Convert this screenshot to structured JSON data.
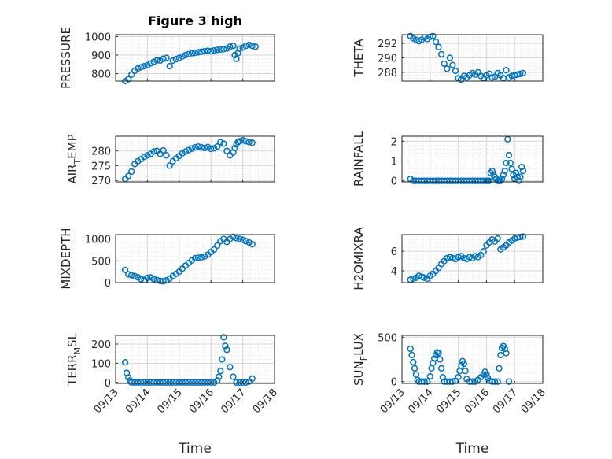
{
  "window": {
    "title": "Figure 3 high"
  },
  "chart_data": [
    {
      "type": "scatter",
      "panel": "pressure",
      "title": "Figure 3 high",
      "ylabel": "PRESSURE",
      "ylabel_sub": "",
      "ylim": [
        760,
        1010
      ],
      "yticks": [
        800,
        900,
        1000
      ],
      "xlim": [
        0,
        5
      ],
      "xticks": [
        "09/13",
        "09/14",
        "09/15",
        "09/16",
        "09/17",
        "09/18"
      ],
      "xlabel": "",
      "show_xticks": false,
      "grid": true,
      "series": [
        {
          "name": "PRESSURE",
          "x": [
            0.3,
            0.4,
            0.5,
            0.6,
            0.7,
            0.8,
            0.9,
            1.0,
            1.1,
            1.2,
            1.3,
            1.4,
            1.5,
            1.6,
            1.7,
            1.8,
            1.9,
            2.0,
            2.1,
            2.2,
            2.3,
            2.4,
            2.5,
            2.6,
            2.7,
            2.8,
            2.9,
            3.0,
            3.1,
            3.2,
            3.3,
            3.4,
            3.5,
            3.6,
            3.7,
            3.75,
            3.8,
            3.85,
            3.9,
            4.0,
            4.1,
            4.2,
            4.3,
            4.4
          ],
          "y": [
            760,
            770,
            795,
            815,
            828,
            834,
            840,
            845,
            855,
            864,
            872,
            870,
            880,
            885,
            840,
            870,
            878,
            885,
            893,
            900,
            905,
            910,
            912,
            915,
            918,
            920,
            923,
            920,
            925,
            928,
            930,
            932,
            935,
            945,
            950,
            900,
            880,
            910,
            935,
            940,
            950,
            955,
            950,
            945
          ]
        }
      ]
    },
    {
      "type": "scatter",
      "panel": "theta",
      "title": "",
      "ylabel": "THETA",
      "ylabel_sub": "",
      "ylim": [
        286.8,
        293.2
      ],
      "yticks": [
        288,
        290,
        292
      ],
      "xlim": [
        0,
        5
      ],
      "xticks": [
        "09/13",
        "09/14",
        "09/15",
        "09/16",
        "09/17",
        "09/18"
      ],
      "xlabel": "",
      "show_xticks": false,
      "grid": true,
      "series": [
        {
          "name": "THETA",
          "x": [
            0.3,
            0.4,
            0.5,
            0.6,
            0.7,
            0.8,
            0.9,
            1.0,
            1.1,
            1.2,
            1.3,
            1.4,
            1.5,
            1.6,
            1.7,
            1.8,
            1.9,
            2.0,
            2.1,
            2.2,
            2.3,
            2.4,
            2.5,
            2.6,
            2.7,
            2.8,
            2.9,
            3.0,
            3.1,
            3.2,
            3.3,
            3.4,
            3.5,
            3.6,
            3.7,
            3.8,
            3.9,
            4.0,
            4.1,
            4.2,
            4.3
          ],
          "y": [
            293,
            292.7,
            292.5,
            292.3,
            292.5,
            292.8,
            292.6,
            292.9,
            293,
            292.2,
            291.5,
            290.5,
            289.2,
            288.5,
            290,
            289,
            288.2,
            287.2,
            287,
            287.5,
            287.3,
            287.6,
            287.9,
            287.7,
            288,
            287.5,
            287.2,
            287.6,
            287.8,
            287.3,
            287.4,
            287.9,
            287.6,
            287.2,
            288.3,
            287.3,
            287.5,
            287.6,
            287.7,
            287.8,
            287.9
          ]
        }
      ]
    },
    {
      "type": "scatter",
      "panel": "air_temp",
      "title": "",
      "ylabel": "AIR",
      "ylabel_sub": "T",
      "ylabel_tail": "EMP",
      "ylim": [
        269.5,
        285
      ],
      "yticks": [
        270,
        275,
        280
      ],
      "xlim": [
        0,
        5
      ],
      "xticks": [
        "09/13",
        "09/14",
        "09/15",
        "09/16",
        "09/17",
        "09/18"
      ],
      "xlabel": "",
      "show_xticks": false,
      "grid": true,
      "series": [
        {
          "name": "AIR_TEMP",
          "x": [
            0.3,
            0.4,
            0.5,
            0.6,
            0.7,
            0.8,
            0.9,
            1.0,
            1.1,
            1.2,
            1.3,
            1.4,
            1.5,
            1.6,
            1.7,
            1.8,
            1.9,
            2.0,
            2.1,
            2.2,
            2.3,
            2.4,
            2.5,
            2.6,
            2.7,
            2.8,
            2.9,
            3.0,
            3.1,
            3.2,
            3.3,
            3.4,
            3.5,
            3.6,
            3.7,
            3.75,
            3.8,
            3.85,
            3.9,
            4.0,
            4.1,
            4.2,
            4.3
          ],
          "y": [
            270.5,
            271.5,
            273,
            275.5,
            276.5,
            277.2,
            278,
            278.5,
            279,
            279.8,
            280,
            279,
            280.2,
            278.5,
            275,
            276.5,
            277.5,
            278.3,
            279.2,
            279.8,
            280.3,
            280.8,
            281.2,
            281.5,
            281.2,
            281,
            281.3,
            280.7,
            280.9,
            281.5,
            283,
            282.5,
            280,
            278.5,
            279.5,
            281,
            282.2,
            283,
            283.3,
            283.6,
            283.3,
            283,
            282.8
          ]
        }
      ]
    },
    {
      "type": "scatter",
      "panel": "rainfall",
      "title": "",
      "ylabel": "RAINFALL",
      "ylabel_sub": "",
      "ylim": [
        -0.05,
        2.25
      ],
      "yticks": [
        0,
        1,
        2
      ],
      "xlim": [
        0,
        5
      ],
      "xticks": [
        "09/13",
        "09/14",
        "09/15",
        "09/16",
        "09/17",
        "09/18"
      ],
      "xlabel": "",
      "show_xticks": false,
      "grid": true,
      "series": [
        {
          "name": "RAINFALL",
          "x": [
            0.3,
            0.4,
            0.5,
            0.6,
            0.7,
            0.8,
            0.9,
            1.0,
            1.1,
            1.2,
            1.3,
            1.4,
            1.5,
            1.6,
            1.7,
            1.8,
            1.9,
            2.0,
            2.1,
            2.2,
            2.3,
            2.4,
            2.5,
            2.6,
            2.7,
            2.8,
            2.9,
            3.0,
            3.05,
            3.1,
            3.15,
            3.2,
            3.25,
            3.3,
            3.35,
            3.4,
            3.45,
            3.5,
            3.55,
            3.6,
            3.65,
            3.7,
            3.75,
            3.8,
            3.85,
            3.9,
            3.95,
            4.0,
            4.05,
            4.1,
            4.15,
            4.2,
            4.25,
            4.3
          ],
          "y": [
            0.1,
            0,
            0,
            0,
            0,
            0,
            0,
            0,
            0,
            0,
            0,
            0,
            0,
            0,
            0,
            0,
            0,
            0,
            0,
            0,
            0,
            0,
            0,
            0,
            0,
            0,
            0,
            0,
            0,
            0,
            0.4,
            0.5,
            0.3,
            0.2,
            0.1,
            0,
            0,
            0,
            0.1,
            0.3,
            0.5,
            0.9,
            2.1,
            1.3,
            0.9,
            0.6,
            0.3,
            0.1,
            0.4,
            0.2,
            0,
            0.2,
            0.7,
            0.5
          ]
        }
      ]
    },
    {
      "type": "scatter",
      "panel": "mixdepth",
      "title": "",
      "ylabel": "MIXDEPTH",
      "ylabel_sub": "",
      "ylim": [
        0,
        1100
      ],
      "yticks": [
        0,
        500,
        1000
      ],
      "xlim": [
        0,
        5
      ],
      "xticks": [
        "09/13",
        "09/14",
        "09/15",
        "09/16",
        "09/17",
        "09/18"
      ],
      "xlabel": "",
      "show_xticks": false,
      "grid": true,
      "series": [
        {
          "name": "MIXDEPTH",
          "x": [
            0.3,
            0.4,
            0.5,
            0.6,
            0.7,
            0.8,
            0.9,
            1.0,
            1.1,
            1.2,
            1.3,
            1.4,
            1.5,
            1.6,
            1.7,
            1.8,
            1.9,
            2.0,
            2.1,
            2.2,
            2.3,
            2.4,
            2.5,
            2.6,
            2.7,
            2.8,
            2.9,
            3.0,
            3.1,
            3.2,
            3.3,
            3.4,
            3.5,
            3.6,
            3.7,
            3.8,
            3.9,
            4.0,
            4.1,
            4.2,
            4.3
          ],
          "y": [
            290,
            190,
            170,
            150,
            120,
            80,
            60,
            110,
            120,
            80,
            60,
            40,
            30,
            50,
            90,
            150,
            200,
            250,
            320,
            390,
            450,
            510,
            560,
            570,
            580,
            600,
            640,
            700,
            760,
            850,
            950,
            1000,
            930,
            1000,
            1050,
            1020,
            1000,
            980,
            950,
            920,
            880
          ]
        }
      ]
    },
    {
      "type": "scatter",
      "panel": "h2omixra",
      "title": "",
      "ylabel": "H2OMIXRA",
      "ylabel_sub": "",
      "ylim": [
        2.8,
        7.7
      ],
      "yticks": [
        4,
        6
      ],
      "xlim": [
        0,
        5
      ],
      "xticks": [
        "09/13",
        "09/14",
        "09/15",
        "09/16",
        "09/17",
        "09/18"
      ],
      "xlabel": "",
      "show_xticks": false,
      "grid": true,
      "series": [
        {
          "name": "H2OMIXRA",
          "x": [
            0.3,
            0.4,
            0.5,
            0.6,
            0.7,
            0.8,
            0.9,
            1.0,
            1.1,
            1.2,
            1.3,
            1.4,
            1.5,
            1.6,
            1.7,
            1.8,
            1.9,
            2.0,
            2.1,
            2.2,
            2.3,
            2.4,
            2.5,
            2.6,
            2.7,
            2.8,
            2.9,
            3.0,
            3.1,
            3.2,
            3.3,
            3.4,
            3.5,
            3.6,
            3.7,
            3.8,
            3.9,
            4.0,
            4.1,
            4.2,
            4.3
          ],
          "y": [
            3.1,
            3.2,
            3.3,
            3.5,
            3.4,
            3.3,
            3.2,
            3.5,
            3.7,
            4.0,
            4.3,
            4.7,
            5.0,
            5.3,
            5.4,
            5.3,
            5.2,
            5.4,
            5.5,
            5.3,
            5.2,
            5.4,
            5.3,
            5.5,
            5.4,
            5.6,
            6.0,
            6.6,
            6.9,
            7.2,
            7.0,
            7.3,
            6.2,
            6.4,
            6.6,
            6.9,
            7.1,
            7.3,
            7.4,
            7.45,
            7.5
          ]
        }
      ]
    },
    {
      "type": "scatter",
      "panel": "terr_msl",
      "title": "",
      "ylabel": "TERR",
      "ylabel_sub": "M",
      "ylabel_tail": "SL",
      "ylim": [
        -5,
        245
      ],
      "yticks": [
        0,
        100,
        200
      ],
      "xlim": [
        0,
        5
      ],
      "xticks": [
        "09/13",
        "09/14",
        "09/15",
        "09/16",
        "09/17",
        "09/18"
      ],
      "xlabel": "Time",
      "show_xticks": true,
      "grid": true,
      "series": [
        {
          "name": "TERR_MSL",
          "x": [
            0.3,
            0.35,
            0.4,
            0.45,
            0.5,
            0.6,
            0.7,
            0.8,
            0.9,
            1.0,
            1.1,
            1.2,
            1.3,
            1.4,
            1.5,
            1.6,
            1.7,
            1.8,
            1.9,
            2.0,
            2.1,
            2.2,
            2.3,
            2.4,
            2.5,
            2.6,
            2.7,
            2.8,
            2.9,
            3.0,
            3.1,
            3.2,
            3.25,
            3.3,
            3.35,
            3.4,
            3.45,
            3.5,
            3.6,
            3.7,
            3.8,
            3.9,
            4.0,
            4.1,
            4.2,
            4.3
          ],
          "y": [
            105,
            50,
            25,
            10,
            0,
            0,
            0,
            0,
            0,
            0,
            0,
            0,
            0,
            0,
            0,
            0,
            0,
            0,
            0,
            0,
            0,
            0,
            0,
            0,
            0,
            0,
            0,
            0,
            0,
            0,
            0,
            10,
            30,
            60,
            120,
            235,
            190,
            170,
            80,
            30,
            0,
            0,
            0,
            0,
            5,
            20
          ]
        }
      ]
    },
    {
      "type": "scatter",
      "panel": "sun_flux",
      "title": "",
      "ylabel": "SUN",
      "ylabel_sub": "F",
      "ylabel_tail": "LUX",
      "ylim": [
        -20,
        520
      ],
      "yticks": [
        0,
        500
      ],
      "xlim": [
        0,
        5
      ],
      "xticks": [
        "09/13",
        "09/14",
        "09/15",
        "09/16",
        "09/17",
        "09/18"
      ],
      "xlabel": "Time",
      "show_xticks": true,
      "grid": true,
      "series": [
        {
          "name": "SUN_FLUX",
          "x": [
            0.3,
            0.35,
            0.4,
            0.45,
            0.5,
            0.55,
            0.6,
            0.7,
            0.8,
            0.9,
            1.0,
            1.05,
            1.1,
            1.15,
            1.2,
            1.25,
            1.3,
            1.35,
            1.4,
            1.45,
            1.5,
            1.6,
            1.7,
            1.8,
            1.9,
            2.0,
            2.05,
            2.1,
            2.15,
            2.2,
            2.25,
            2.3,
            2.4,
            2.5,
            2.6,
            2.7,
            2.8,
            2.9,
            2.95,
            3.0,
            3.05,
            3.1,
            3.2,
            3.3,
            3.4,
            3.45,
            3.5,
            3.55,
            3.6,
            3.65,
            3.7,
            3.8
          ],
          "y": [
            370,
            300,
            220,
            150,
            80,
            20,
            0,
            0,
            0,
            0,
            60,
            150,
            210,
            260,
            300,
            330,
            320,
            250,
            150,
            50,
            0,
            0,
            0,
            0,
            10,
            50,
            120,
            180,
            230,
            200,
            120,
            30,
            0,
            0,
            0,
            20,
            50,
            80,
            110,
            80,
            40,
            10,
            0,
            0,
            0,
            150,
            300,
            380,
            400,
            370,
            320,
            0
          ]
        }
      ]
    }
  ]
}
